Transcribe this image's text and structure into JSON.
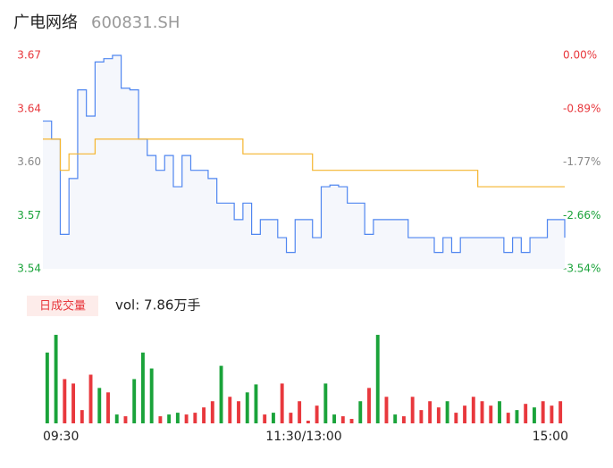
{
  "chart_data": [
    {
      "type": "line",
      "title": "广电网络",
      "subtitle": "600831.SH",
      "x": [
        0,
        4,
        8,
        12,
        16,
        20,
        24,
        28,
        32,
        36,
        40,
        44,
        48,
        52,
        56,
        60,
        64,
        68,
        72,
        76,
        80,
        84,
        88,
        92,
        96,
        100,
        104,
        108,
        112,
        116,
        120,
        124,
        128,
        132,
        136,
        140,
        144,
        148,
        152,
        156,
        160,
        164,
        168,
        172,
        176,
        180,
        184,
        188,
        192,
        196,
        200,
        204,
        208,
        212,
        216,
        220,
        224,
        228,
        232,
        236,
        240
      ],
      "series": [
        {
          "name": "price",
          "color": "#4f86f0",
          "values": [
            3.63,
            3.619,
            3.561,
            3.595,
            3.649,
            3.633,
            3.666,
            3.668,
            3.67,
            3.65,
            3.649,
            3.619,
            3.609,
            3.6,
            3.609,
            3.59,
            3.609,
            3.6,
            3.6,
            3.595,
            3.58,
            3.58,
            3.57,
            3.58,
            3.561,
            3.57,
            3.57,
            3.559,
            3.55,
            3.57,
            3.57,
            3.559,
            3.59,
            3.591,
            3.59,
            3.58,
            3.58,
            3.561,
            3.57,
            3.57,
            3.57,
            3.57,
            3.559,
            3.559,
            3.559,
            3.55,
            3.559,
            3.55,
            3.559,
            3.559,
            3.559,
            3.559,
            3.559,
            3.55,
            3.559,
            3.55,
            3.559,
            3.559,
            3.57,
            3.57,
            3.559
          ]
        },
        {
          "name": "average",
          "color": "#f5b52e",
          "values": [
            3.619,
            3.619,
            3.6,
            3.61,
            3.61,
            3.61,
            3.619,
            3.619,
            3.619,
            3.619,
            3.619,
            3.619,
            3.619,
            3.619,
            3.619,
            3.619,
            3.619,
            3.619,
            3.619,
            3.619,
            3.619,
            3.619,
            3.619,
            3.61,
            3.61,
            3.61,
            3.61,
            3.61,
            3.61,
            3.61,
            3.61,
            3.6,
            3.6,
            3.6,
            3.6,
            3.6,
            3.6,
            3.6,
            3.6,
            3.6,
            3.6,
            3.6,
            3.6,
            3.6,
            3.6,
            3.6,
            3.6,
            3.6,
            3.6,
            3.6,
            3.59,
            3.59,
            3.59,
            3.59,
            3.59,
            3.59,
            3.59,
            3.59,
            3.59,
            3.59,
            3.59
          ]
        }
      ],
      "xlim": [
        0,
        240
      ],
      "ylim": [
        3.54,
        3.67
      ],
      "yticks": [
        {
          "value": 3.67,
          "label": "3.67"
        },
        {
          "value": 3.6375,
          "label": "3.64"
        },
        {
          "value": 3.605,
          "label": "3.60"
        },
        {
          "value": 3.5725,
          "label": "3.57"
        },
        {
          "value": 3.54,
          "label": "3.54"
        }
      ],
      "ytick_colors": [
        "#e8383d",
        "#e8383d",
        "#888888",
        "#1aa33a",
        "#1aa33a"
      ],
      "y2lim": [
        -3.54,
        0
      ],
      "y2ticks": [
        {
          "value": 0,
          "label": "0.00%"
        },
        {
          "value": -0.885,
          "label": "-0.89%"
        },
        {
          "value": -1.77,
          "label": "-1.77%"
        },
        {
          "value": -2.655,
          "label": "-2.66%"
        },
        {
          "value": -3.54,
          "label": "-3.54%"
        }
      ]
    },
    {
      "type": "bar",
      "badge": "日成交量",
      "label": "vol: 7.86万手",
      "x": [
        0,
        4,
        8,
        12,
        16,
        20,
        24,
        28,
        32,
        36,
        40,
        44,
        48,
        52,
        56,
        60,
        64,
        68,
        72,
        76,
        80,
        84,
        88,
        92,
        96,
        100,
        104,
        108,
        112,
        116,
        120,
        124,
        128,
        132,
        136,
        140,
        144,
        148,
        152,
        156,
        160,
        164,
        168,
        172,
        176,
        180,
        184,
        188,
        192,
        196,
        200,
        204,
        208,
        212,
        216,
        220,
        224,
        228,
        232,
        236
      ],
      "values": [
        80,
        100,
        50,
        45,
        15,
        55,
        40,
        35,
        10,
        8,
        50,
        80,
        62,
        8,
        10,
        12,
        10,
        12,
        18,
        25,
        65,
        30,
        25,
        35,
        44,
        10,
        12,
        45,
        12,
        25,
        3,
        20,
        45,
        10,
        8,
        5,
        25,
        40,
        100,
        30,
        10,
        8,
        30,
        15,
        25,
        18,
        25,
        12,
        20,
        30,
        25,
        20,
        25,
        12,
        15,
        22,
        18,
        25,
        20,
        25
      ],
      "up": [
        false,
        false,
        true,
        true,
        true,
        true,
        false,
        true,
        false,
        true,
        false,
        false,
        false,
        true,
        false,
        false,
        true,
        true,
        true,
        true,
        false,
        true,
        true,
        false,
        false,
        true,
        false,
        true,
        true,
        true,
        true,
        true,
        false,
        false,
        true,
        true,
        false,
        true,
        false,
        true,
        false,
        true,
        true,
        true,
        true,
        true,
        false,
        true,
        true,
        true,
        true,
        true,
        false,
        true,
        false,
        true,
        false,
        true,
        true,
        true
      ],
      "up_color": "#e8383d",
      "down_color": "#1aa33a",
      "xlim": [
        0,
        240
      ],
      "ylim": [
        0,
        110
      ],
      "xticks": [
        {
          "value": 0,
          "label": "09:30"
        },
        {
          "value": 120,
          "label": "11:30/13:00"
        },
        {
          "value": 240,
          "label": "15:00"
        }
      ]
    }
  ]
}
